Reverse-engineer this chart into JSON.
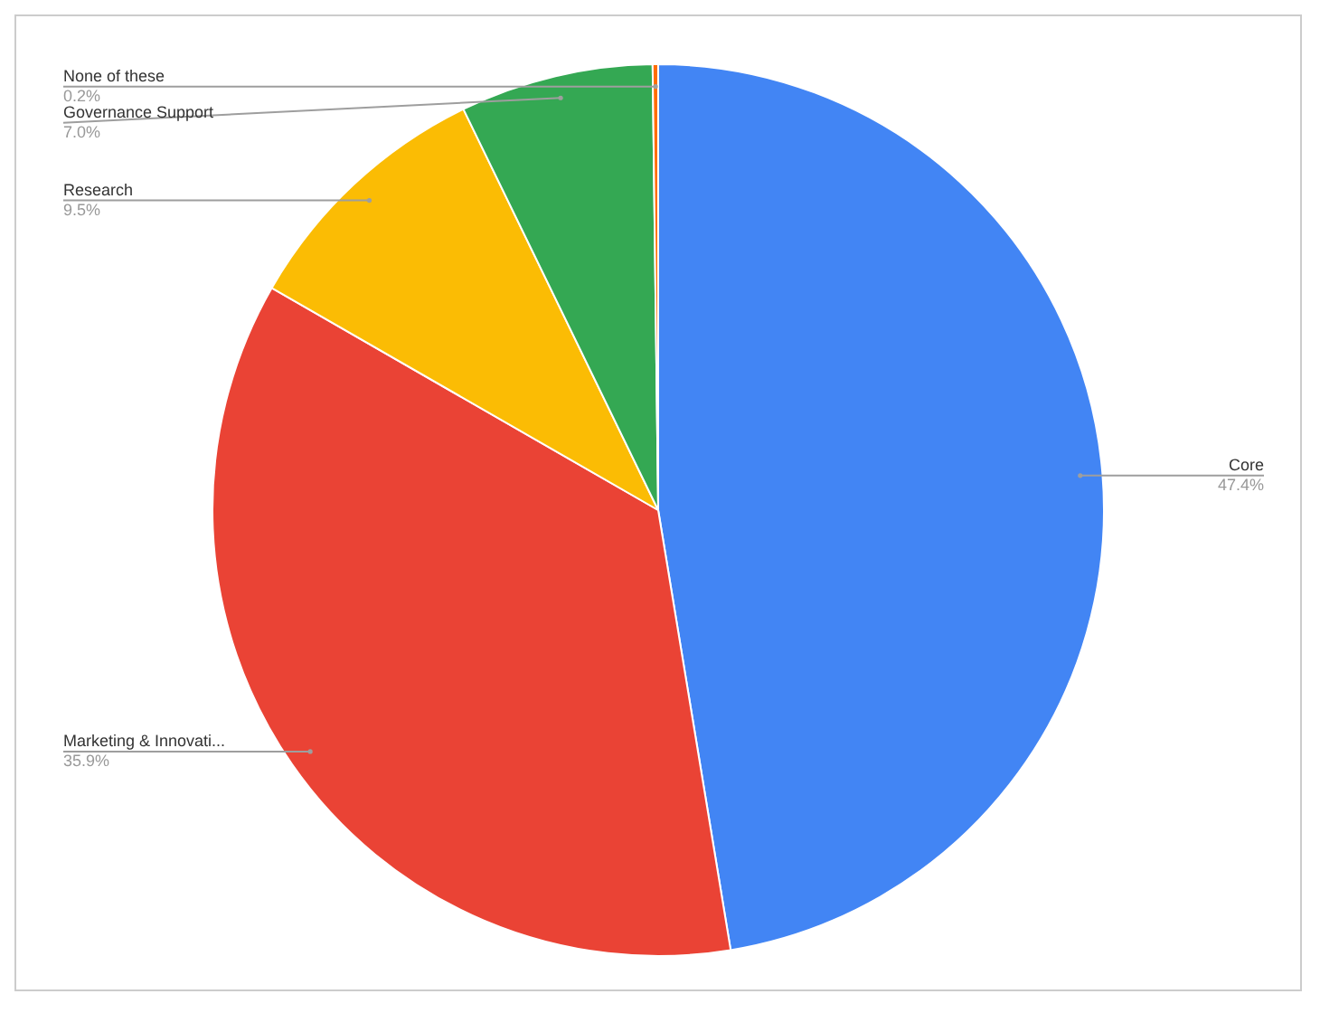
{
  "chart_data": {
    "type": "pie",
    "categories": [
      "Core",
      "Marketing & Innovati...",
      "Research",
      "Governance Support",
      "None of these"
    ],
    "values": [
      47.4,
      35.9,
      9.5,
      7.0,
      0.2
    ],
    "value_labels": [
      "47.4%",
      "35.9%",
      "9.5%",
      "7.0%",
      "0.2%"
    ],
    "colors": [
      "#4285f4",
      "#ea4335",
      "#fbbc04",
      "#34a853",
      "#ff6d01"
    ],
    "legend": false
  }
}
